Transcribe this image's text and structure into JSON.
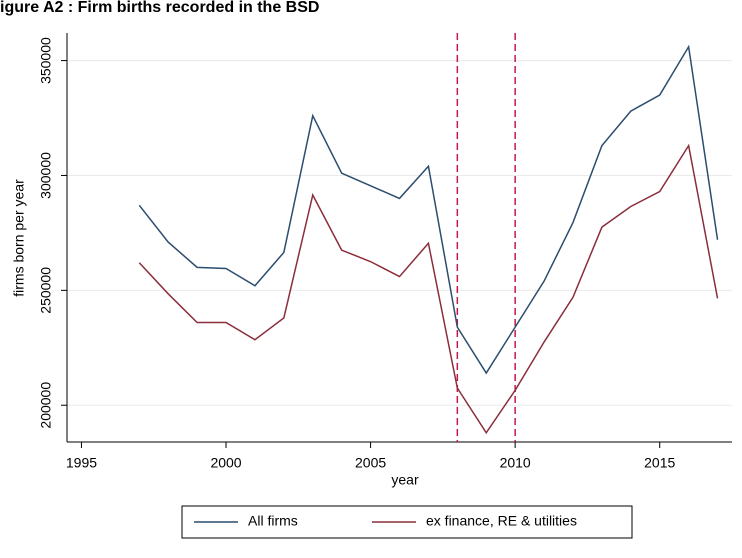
{
  "chart_data": {
    "type": "line",
    "title": "igure A2 : Firm births recorded in the BSD",
    "xlabel": "year",
    "ylabel": "firms born per year",
    "x": [
      1997,
      1998,
      1999,
      2000,
      2001,
      2002,
      2003,
      2004,
      2005,
      2006,
      2007,
      2008,
      2009,
      2010,
      2011,
      2012,
      2013,
      2014,
      2015,
      2016,
      2017
    ],
    "series": [
      {
        "name": "All firms",
        "color": "#2c4d6e",
        "values": [
          287000,
          271000,
          260000,
          259500,
          252000,
          266500,
          326000,
          301000,
          295500,
          290000,
          304000,
          234000,
          214000,
          234000,
          254000,
          279500,
          313000,
          328000,
          335000,
          356000,
          272000
        ]
      },
      {
        "name": "ex finance, RE & utilities",
        "color": "#8b2e3c",
        "values": [
          262000,
          248500,
          236000,
          236000,
          228500,
          238000,
          291500,
          267500,
          262500,
          256000,
          270500,
          207500,
          188000,
          206500,
          227500,
          247000,
          277500,
          286500,
          293000,
          313000,
          246500
        ]
      }
    ],
    "vlines": [
      2008,
      2010
    ],
    "vline_color": "#c8174e",
    "xlim": [
      1994.5,
      2017.5
    ],
    "xticks": [
      1995,
      2000,
      2005,
      2010,
      2015
    ],
    "ylim": [
      184000,
      362000
    ],
    "yticks": [
      200000,
      250000,
      300000,
      350000
    ],
    "grid": true,
    "legend": "bottom"
  }
}
